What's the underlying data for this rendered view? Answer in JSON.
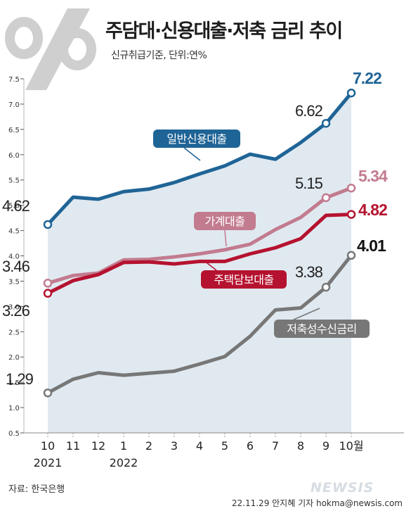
{
  "title": "주담대·신용대출·저축 금리 추이",
  "subtitle": "신규취급기준, 단위:연%",
  "source": "자료:  한국은행",
  "credit": "22.11.29 안지혜 기자 hokma@newsis.com",
  "watermark": "NEWSIS",
  "colors": {
    "blue": "#1f6496",
    "pink": "#c27b8f",
    "red": "#b5122f",
    "gray": "#777777",
    "area": "#d6e1eb"
  },
  "chart_data": {
    "type": "line",
    "title": "주담대·신용대출·저축 금리 추이",
    "subtitle": "신규취급기준, 단위:연%",
    "x": [
      "10",
      "11",
      "12",
      "1",
      "2",
      "3",
      "4",
      "5",
      "6",
      "7",
      "8",
      "9",
      "10월"
    ],
    "x_year_labels": [
      {
        "index": 0,
        "label": "2021"
      },
      {
        "index": 3,
        "label": "2022"
      }
    ],
    "yticks": [
      "0.5",
      "1.0",
      "1.5",
      "2.0",
      "2.5",
      "3.0",
      "3.5",
      "4.0",
      "4.5",
      "5.0",
      "5.5",
      "6.0",
      "6.5",
      "7.0",
      "7.5"
    ],
    "ylim": [
      0.5,
      7.5
    ],
    "grid": false,
    "series": [
      {
        "name": "일반신용대출",
        "color_key": "blue",
        "values": [
          4.62,
          5.16,
          5.12,
          5.27,
          5.32,
          5.45,
          5.62,
          5.78,
          6.01,
          5.91,
          6.24,
          6.62,
          7.22
        ],
        "labels": [
          {
            "index": 0,
            "text": "4.62"
          },
          {
            "index": 11,
            "text": "6.62"
          },
          {
            "index": 12,
            "text": "7.22"
          }
        ]
      },
      {
        "name": "가계대출",
        "color_key": "pink",
        "values": [
          3.46,
          3.61,
          3.66,
          3.92,
          3.93,
          3.98,
          4.04,
          4.12,
          4.23,
          4.52,
          4.76,
          5.15,
          5.34
        ],
        "labels": [
          {
            "index": 0,
            "text": "3.46"
          },
          {
            "index": 11,
            "text": "5.15"
          },
          {
            "index": 12,
            "text": "5.34"
          }
        ]
      },
      {
        "name": "주택담보대출",
        "color_key": "red",
        "values": [
          3.26,
          3.51,
          3.63,
          3.87,
          3.88,
          3.84,
          3.89,
          3.89,
          4.04,
          4.16,
          4.34,
          4.8,
          4.82
        ],
        "labels": [
          {
            "index": 0,
            "text": "3.26"
          },
          {
            "index": 12,
            "text": "4.82"
          }
        ]
      },
      {
        "name": "저축성수신금리",
        "color_key": "gray",
        "values": [
          1.29,
          1.56,
          1.69,
          1.64,
          1.68,
          1.72,
          1.86,
          2.01,
          2.41,
          2.93,
          2.97,
          3.38,
          4.01
        ],
        "labels": [
          {
            "index": 0,
            "text": "1.29"
          },
          {
            "index": 11,
            "text": "3.38"
          },
          {
            "index": 12,
            "text": "4.01"
          }
        ]
      }
    ]
  }
}
